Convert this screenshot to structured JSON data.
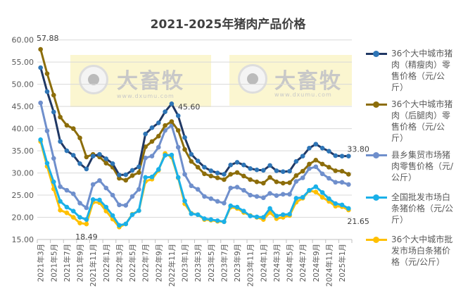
{
  "chart_data": {
    "type": "line",
    "title": "2021-2025年猪肉产品价格",
    "xlabel": "",
    "ylabel": "",
    "ylim": [
      15,
      60
    ],
    "yticks": [
      "15.00",
      "20.00",
      "25.00",
      "30.00",
      "35.00",
      "40.00",
      "45.00",
      "50.00",
      "55.00",
      "60.00"
    ],
    "grid": true,
    "legend_position": "right",
    "x": [
      "2021年3月",
      "2021年4月",
      "2021年5月",
      "2021年6月",
      "2021年7月",
      "2021年8月",
      "2021年9月",
      "2021年10月",
      "2021年11月",
      "2021年12月",
      "2022年1月",
      "2022年2月",
      "2022年3月",
      "2022年4月",
      "2022年5月",
      "2022年6月",
      "2022年7月",
      "2022年8月",
      "2022年9月",
      "2022年10月",
      "2022年11月",
      "2022年12月",
      "2023年1月",
      "2023年2月",
      "2023年3月",
      "2023年4月",
      "2023年5月",
      "2023年6月",
      "2023年7月",
      "2023年8月",
      "2023年9月",
      "2023年10月",
      "2023年11月",
      "2023年12月",
      "2024年1月",
      "2024年2月",
      "2024年3月",
      "2024年4月",
      "2024年5月",
      "2024年6月",
      "2024年7月",
      "2024年8月",
      "2024年9月",
      "2024年10月",
      "2024年11月",
      "2024年12月",
      "2025年1月",
      "2025年2月"
    ],
    "xtick_labels": [
      "2021年3月",
      "2021年5月",
      "2021年7月",
      "2021年9月",
      "2021年11月",
      "2022年1月",
      "2022年3月",
      "2022年5月",
      "2022年7月",
      "2022年9月",
      "2022年11月",
      "2023年1月",
      "2023年3月",
      "2023年5月",
      "2023年7月",
      "2023年9月",
      "2023年11月",
      "2024年1月",
      "2024年3月",
      "2024年5月",
      "2024年7月",
      "2024年9月",
      "2024年11月",
      "2025年1月"
    ],
    "series": [
      {
        "name": "36个大中城市猪肉（精瘦肉）零售价格（元/公斤）",
        "color": "#203864",
        "marker": "#2e75b6",
        "values": [
          53.75,
          48.35,
          43.75,
          37.1,
          35.0,
          34.0,
          32.1,
          30.9,
          33.8,
          34.2,
          33.2,
          32.1,
          29.55,
          29.6,
          30.6,
          31.4,
          38.8,
          40.2,
          41.3,
          43.8,
          45.6,
          42.9,
          38.0,
          34.2,
          32.7,
          31.3,
          30.5,
          30.0,
          29.7,
          31.8,
          32.4,
          31.8,
          31.0,
          30.7,
          30.6,
          31.7,
          30.5,
          30.3,
          30.4,
          32.6,
          33.8,
          35.6,
          36.5,
          35.6,
          34.9,
          33.9,
          33.8,
          33.8
        ]
      },
      {
        "name": "36个大中城市猪肉（后腿肉）零售价格（元/公斤）",
        "color": "#8c6d0a",
        "marker": "#8c6d0a",
        "values": [
          57.88,
          52.4,
          47.55,
          42.6,
          40.75,
          40.0,
          37.9,
          33.6,
          34.2,
          33.6,
          32.2,
          31.3,
          28.8,
          28.35,
          29.4,
          30.1,
          35.9,
          37.1,
          38.3,
          40.7,
          41.6,
          39.6,
          35.3,
          32.6,
          31.3,
          29.8,
          29.3,
          28.9,
          28.5,
          29.7,
          30.1,
          29.3,
          28.5,
          28.0,
          27.7,
          29.0,
          28.0,
          27.7,
          27.8,
          29.4,
          30.4,
          32.0,
          32.9,
          32.0,
          31.3,
          30.5,
          30.4,
          29.7
        ]
      },
      {
        "name": "县乡集贸市场猪肉零售价格（元/公斤）",
        "color": "#6f8fcc",
        "marker": "#6f8fcc",
        "values": [
          45.8,
          39.5,
          33.3,
          26.9,
          26.1,
          25.3,
          23.2,
          22.15,
          27.4,
          28.3,
          26.6,
          25.0,
          22.8,
          22.7,
          24.7,
          26.3,
          33.4,
          33.8,
          35.8,
          39.6,
          40.7,
          35.8,
          29.7,
          27.1,
          26.3,
          24.7,
          24.2,
          23.6,
          23.2,
          26.6,
          26.8,
          26.1,
          25.0,
          24.7,
          24.4,
          25.4,
          24.9,
          25.2,
          25.2,
          28.1,
          28.9,
          31.0,
          31.4,
          29.8,
          28.8,
          27.9,
          27.9,
          27.4
        ]
      },
      {
        "name": "全国批发市场白条猪价格（元/公斤）",
        "color": "#1ab0e8",
        "marker": "#1ab0e8",
        "values": [
          37.5,
          32.2,
          28.0,
          23.6,
          22.3,
          21.4,
          20.0,
          19.5,
          24.0,
          23.9,
          22.3,
          20.4,
          18.2,
          18.5,
          20.6,
          21.5,
          29.0,
          29.1,
          30.8,
          34.0,
          34.05,
          29.0,
          23.7,
          20.8,
          20.6,
          19.7,
          19.5,
          19.25,
          19.0,
          22.6,
          22.3,
          21.4,
          20.3,
          20.1,
          20.0,
          22.0,
          20.3,
          20.6,
          20.7,
          24.3,
          24.5,
          26.1,
          26.9,
          25.6,
          24.2,
          23.1,
          22.8,
          22.0
        ]
      },
      {
        "name": "36个大中城市批发市场白条猪价格（元/公斤）",
        "color": "#ffc000",
        "marker": "#ffc000",
        "values": [
          37.1,
          31.5,
          26.4,
          21.6,
          21.0,
          20.0,
          18.7,
          18.49,
          23.4,
          23.3,
          21.4,
          19.6,
          17.8,
          18.5,
          20.7,
          21.5,
          28.1,
          28.6,
          30.6,
          34.4,
          33.6,
          28.9,
          23.05,
          20.9,
          20.6,
          19.5,
          19.35,
          19.1,
          19.0,
          22.3,
          22.0,
          21.1,
          20.4,
          20.0,
          19.5,
          21.1,
          19.7,
          20.0,
          20.4,
          23.4,
          24.3,
          26.0,
          25.7,
          24.5,
          23.6,
          22.5,
          22.4,
          21.65
        ]
      }
    ],
    "annotations": [
      {
        "series": 1,
        "index": 0,
        "text": "57.88"
      },
      {
        "series": 4,
        "index": 7,
        "text": "18.49"
      },
      {
        "series": 0,
        "index": 20,
        "text": "45.60"
      },
      {
        "series": 0,
        "index": 47,
        "text": "33.80"
      },
      {
        "series": 4,
        "index": 47,
        "text": "21.65"
      }
    ]
  },
  "watermark": {
    "brand": "大畜牧",
    "url": "www.dxumu.com"
  }
}
